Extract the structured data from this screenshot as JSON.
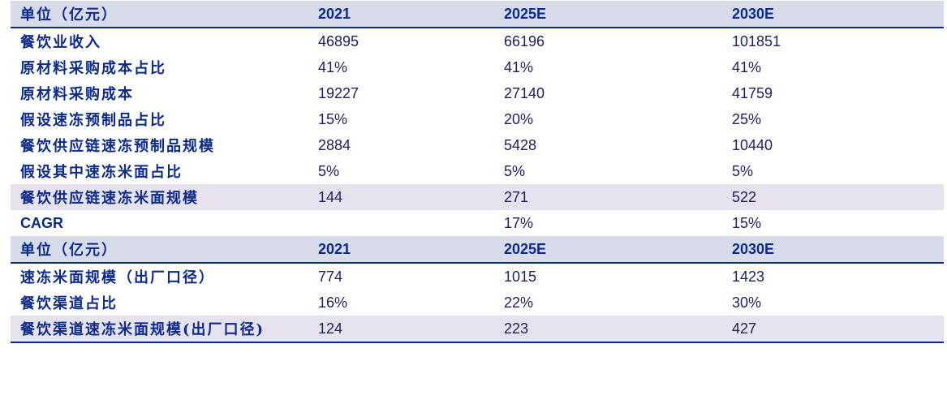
{
  "table": {
    "header1": [
      "单位（亿元）",
      "2021",
      "2025E",
      "2030E"
    ],
    "rows1": [
      [
        "餐饮业收入",
        "46895",
        "66196",
        "101851"
      ],
      [
        "原材料采购成本占比",
        "41%",
        "41%",
        "41%"
      ],
      [
        "原材料采购成本",
        "19227",
        "27140",
        "41759"
      ],
      [
        "假设速冻预制品占比",
        "15%",
        "20%",
        "25%"
      ],
      [
        "餐饮供应链速冻预制品规模",
        "2884",
        "5428",
        "10440"
      ],
      [
        "假设其中速冻米面占比",
        "5%",
        "5%",
        "5%"
      ],
      [
        "餐饮供应链速冻米面规模",
        "144",
        "271",
        "522"
      ],
      [
        "CAGR",
        "",
        "17%",
        "15%"
      ]
    ],
    "header2": [
      "单位（亿元）",
      "2021",
      "2025E",
      "2030E"
    ],
    "rows2": [
      [
        "速冻米面规模（出厂口径）",
        "774",
        "1015",
        "1423"
      ],
      [
        "餐饮渠道占比",
        "16%",
        "22%",
        "30%"
      ],
      [
        "餐饮渠道速冻米面规模(出厂口径)",
        "124",
        "223",
        "427"
      ]
    ]
  }
}
